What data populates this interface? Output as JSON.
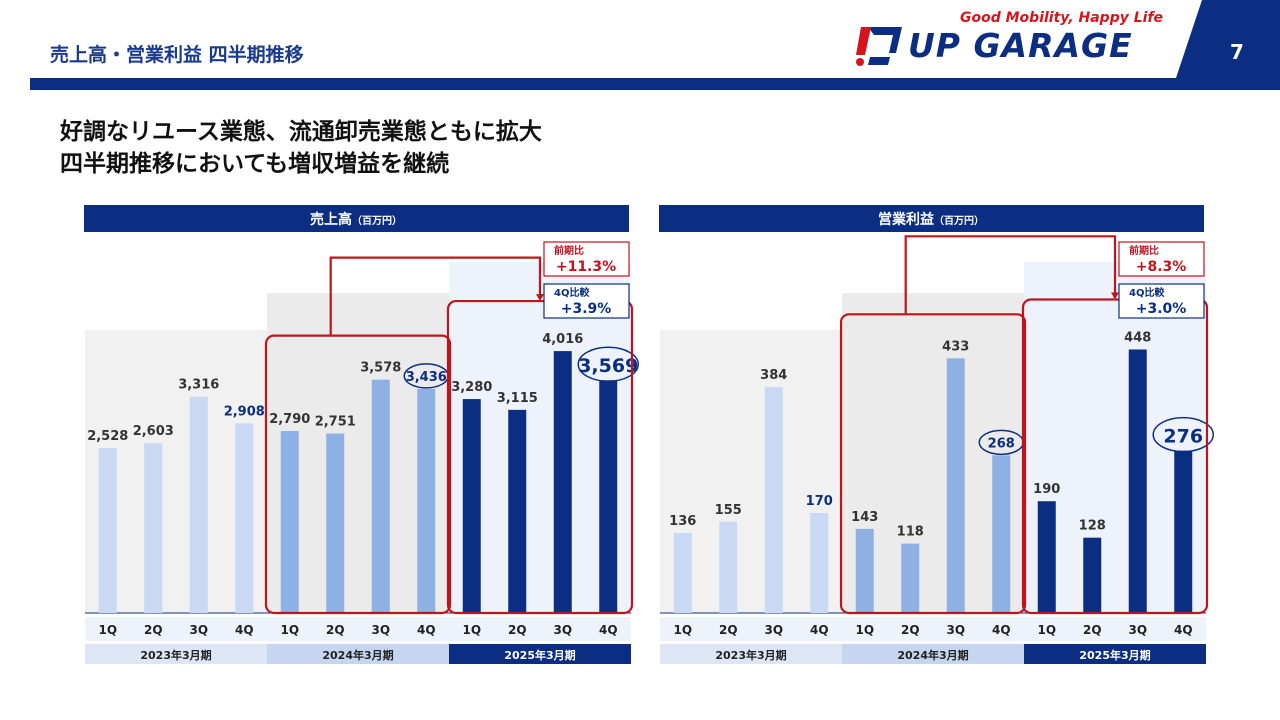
{
  "header": {
    "title": "売上高・営業利益 四半期推移",
    "page_number": "7",
    "tagline": "Good Mobility, Happy Life",
    "logo_text": "UP GARAGE"
  },
  "headline": {
    "line1": "好調なリユース業態、流通卸売業態ともに拡大",
    "line2": "四半期推移においても増収増益を継続"
  },
  "colors": {
    "navy": "#0b2e83",
    "fy2024": "#8fb0e3",
    "fy2023": "#c9d9f3",
    "red": "#c0141c"
  },
  "chart_data": [
    {
      "type": "bar",
      "title": "売上高",
      "unit": "（百万円）",
      "categories": [
        "1Q",
        "2Q",
        "3Q",
        "4Q",
        "1Q",
        "2Q",
        "3Q",
        "4Q",
        "1Q",
        "2Q",
        "3Q",
        "4Q"
      ],
      "groups": [
        "2023年3月期",
        "2024年3月期",
        "2025年3月期"
      ],
      "values": [
        2528,
        2603,
        3316,
        2908,
        2790,
        2751,
        3578,
        3436,
        3280,
        3115,
        4016,
        3569
      ],
      "labels": [
        "2,528",
        "2,603",
        "3,316",
        "2,908",
        "2,790",
        "2,751",
        "3,578",
        "3,436",
        "3,280",
        "3,115",
        "4,016",
        "3,569"
      ],
      "ymax": 4600,
      "yoy_label": "前期比",
      "yoy_value": "+11.3%",
      "q4_label": "4Q比較",
      "q4_value": "+3.9%"
    },
    {
      "type": "bar",
      "title": "営業利益",
      "unit": "（百万円）",
      "categories": [
        "1Q",
        "2Q",
        "3Q",
        "4Q",
        "1Q",
        "2Q",
        "3Q",
        "4Q",
        "1Q",
        "2Q",
        "3Q",
        "4Q"
      ],
      "groups": [
        "2023年3月期",
        "2024年3月期",
        "2025年3月期"
      ],
      "values": [
        136,
        155,
        384,
        170,
        143,
        118,
        433,
        268,
        190,
        128,
        448,
        276
      ],
      "labels": [
        "136",
        "155",
        "384",
        "170",
        "143",
        "118",
        "433",
        "268",
        "190",
        "128",
        "448",
        "276"
      ],
      "ymax": 510,
      "yoy_label": "前期比",
      "yoy_value": "+8.3%",
      "q4_label": "4Q比較",
      "q4_value": "+3.0%"
    }
  ]
}
